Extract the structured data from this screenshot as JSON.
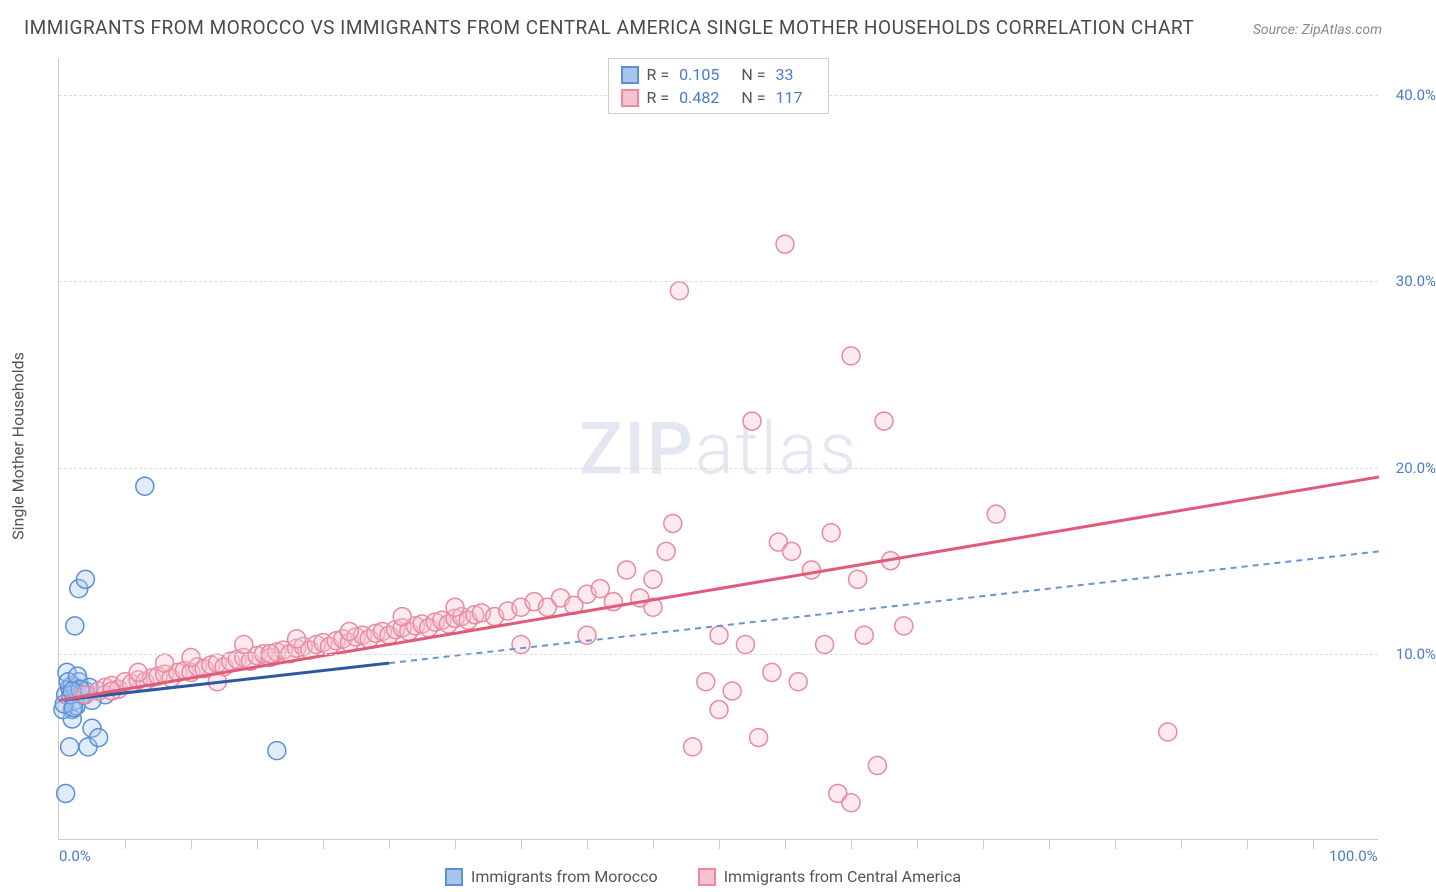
{
  "title": "IMMIGRANTS FROM MOROCCO VS IMMIGRANTS FROM CENTRAL AMERICA SINGLE MOTHER HOUSEHOLDS CORRELATION CHART",
  "source": "Source: ZipAtlas.com",
  "y_axis_label": "Single Mother Households",
  "watermark_a": "ZIP",
  "watermark_b": "atlas",
  "chart": {
    "type": "scatter",
    "xlim": [
      0,
      100
    ],
    "ylim": [
      0,
      42
    ],
    "y_ticks": [
      10,
      20,
      30,
      40
    ],
    "y_tick_labels": [
      "10.0%",
      "20.0%",
      "30.0%",
      "40.0%"
    ],
    "x_ticks": [
      0,
      50,
      100
    ],
    "x_tick_labels": [
      "0.0%",
      "",
      "100.0%"
    ],
    "x_minor_ticks": [
      5,
      10,
      15,
      20,
      25,
      30,
      35,
      40,
      45,
      50,
      55,
      60,
      65,
      70,
      75,
      80,
      85,
      90,
      95
    ],
    "grid_color": "#dddddd",
    "background_color": "#ffffff",
    "marker_radius": 9,
    "marker_stroke_width": 1.5,
    "marker_fill_opacity": 0.35,
    "series": [
      {
        "name": "Immigrants from Morocco",
        "stroke_color": "#5b8fd6",
        "fill_color": "#a8c5ed",
        "line_color": "#2c5aa0",
        "line_dash": "none",
        "R": "0.105",
        "N": "33",
        "trend_start": [
          0,
          7.5
        ],
        "trend_end": [
          25,
          9.5
        ],
        "extrap_dash": "6,5",
        "extrap_color": "#6a93d4",
        "extrap_start": [
          25,
          9.5
        ],
        "extrap_end": [
          100,
          15.5
        ],
        "points": [
          [
            0.5,
            7.8
          ],
          [
            0.8,
            8.2
          ],
          [
            1.0,
            7.0
          ],
          [
            1.2,
            7.5
          ],
          [
            1.3,
            8.0
          ],
          [
            1.5,
            8.5
          ],
          [
            1.0,
            6.5
          ],
          [
            0.5,
            2.5
          ],
          [
            1.2,
            11.5
          ],
          [
            1.5,
            13.5
          ],
          [
            2.0,
            14.0
          ],
          [
            0.8,
            5.0
          ],
          [
            2.2,
            5.0
          ],
          [
            2.5,
            6.0
          ],
          [
            3.0,
            5.5
          ],
          [
            3.5,
            7.8
          ],
          [
            1.0,
            8.3
          ],
          [
            1.3,
            7.2
          ],
          [
            2.0,
            8.0
          ],
          [
            2.5,
            7.5
          ],
          [
            0.6,
            9.0
          ],
          [
            6.5,
            19.0
          ],
          [
            0.3,
            7.0
          ],
          [
            0.7,
            8.5
          ],
          [
            1.4,
            8.8
          ],
          [
            1.8,
            7.8
          ],
          [
            2.3,
            8.2
          ],
          [
            0.4,
            7.3
          ],
          [
            0.9,
            7.8
          ],
          [
            1.1,
            7.1
          ],
          [
            1.6,
            8.1
          ],
          [
            16.5,
            4.8
          ],
          [
            1.0,
            8.0
          ]
        ]
      },
      {
        "name": "Immigrants from Central America",
        "stroke_color": "#e88ba0",
        "fill_color": "#f5c2ce",
        "line_color": "#e05a7a",
        "line_dash": "none",
        "R": "0.482",
        "N": "117",
        "trend_start": [
          0,
          7.5
        ],
        "trend_end": [
          100,
          19.5
        ],
        "points": [
          [
            2,
            7.8
          ],
          [
            3,
            8.0
          ],
          [
            3.5,
            8.2
          ],
          [
            4,
            8.3
          ],
          [
            4.5,
            8.1
          ],
          [
            5,
            8.5
          ],
          [
            5.5,
            8.4
          ],
          [
            6,
            8.6
          ],
          [
            6.5,
            8.5
          ],
          [
            7,
            8.7
          ],
          [
            7.5,
            8.8
          ],
          [
            8,
            8.9
          ],
          [
            8.5,
            8.7
          ],
          [
            9,
            9.0
          ],
          [
            9.5,
            9.1
          ],
          [
            10,
            9.0
          ],
          [
            10.5,
            9.3
          ],
          [
            11,
            9.2
          ],
          [
            11.5,
            9.4
          ],
          [
            12,
            9.5
          ],
          [
            12.5,
            9.3
          ],
          [
            13,
            9.6
          ],
          [
            13.5,
            9.7
          ],
          [
            14,
            9.8
          ],
          [
            14.5,
            9.6
          ],
          [
            15,
            9.9
          ],
          [
            15.5,
            10.0
          ],
          [
            16,
            9.8
          ],
          [
            16.5,
            10.1
          ],
          [
            17,
            10.2
          ],
          [
            17.5,
            10.0
          ],
          [
            18,
            10.3
          ],
          [
            18.5,
            10.4
          ],
          [
            19,
            10.2
          ],
          [
            19.5,
            10.5
          ],
          [
            20,
            10.6
          ],
          [
            20.5,
            10.4
          ],
          [
            21,
            10.7
          ],
          [
            21.5,
            10.8
          ],
          [
            22,
            10.6
          ],
          [
            22.5,
            10.9
          ],
          [
            23,
            11.0
          ],
          [
            23.5,
            10.8
          ],
          [
            24,
            11.1
          ],
          [
            24.5,
            11.2
          ],
          [
            25,
            11.0
          ],
          [
            25.5,
            11.3
          ],
          [
            26,
            11.4
          ],
          [
            26.5,
            11.2
          ],
          [
            27,
            11.5
          ],
          [
            27.5,
            11.6
          ],
          [
            28,
            11.4
          ],
          [
            28.5,
            11.7
          ],
          [
            29,
            11.8
          ],
          [
            29.5,
            11.6
          ],
          [
            30,
            11.9
          ],
          [
            30.5,
            12.0
          ],
          [
            31,
            11.8
          ],
          [
            31.5,
            12.1
          ],
          [
            32,
            12.2
          ],
          [
            33,
            12.0
          ],
          [
            34,
            12.3
          ],
          [
            35,
            12.5
          ],
          [
            36,
            12.8
          ],
          [
            37,
            12.5
          ],
          [
            38,
            13.0
          ],
          [
            39,
            12.6
          ],
          [
            40,
            13.2
          ],
          [
            41,
            13.5
          ],
          [
            42,
            12.8
          ],
          [
            43,
            14.5
          ],
          [
            44,
            13.0
          ],
          [
            45,
            12.5
          ],
          [
            46,
            15.5
          ],
          [
            46.5,
            17.0
          ],
          [
            47,
            29.5
          ],
          [
            48,
            5.0
          ],
          [
            49,
            8.5
          ],
          [
            50,
            11.0
          ],
          [
            51,
            8.0
          ],
          [
            52,
            10.5
          ],
          [
            52.5,
            22.5
          ],
          [
            53,
            5.5
          ],
          [
            54,
            9.0
          ],
          [
            54.5,
            16.0
          ],
          [
            55,
            32.0
          ],
          [
            55.5,
            15.5
          ],
          [
            56,
            8.5
          ],
          [
            57,
            14.5
          ],
          [
            58,
            10.5
          ],
          [
            58.5,
            16.5
          ],
          [
            59,
            2.5
          ],
          [
            60,
            26.0
          ],
          [
            60.5,
            14.0
          ],
          [
            61,
            11.0
          ],
          [
            62,
            4.0
          ],
          [
            62.5,
            22.5
          ],
          [
            63,
            15.0
          ],
          [
            64,
            11.5
          ],
          [
            71,
            17.5
          ],
          [
            4,
            8.0
          ],
          [
            6,
            9.0
          ],
          [
            8,
            9.5
          ],
          [
            10,
            9.8
          ],
          [
            12,
            8.5
          ],
          [
            14,
            10.5
          ],
          [
            16,
            10.0
          ],
          [
            18,
            10.8
          ],
          [
            22,
            11.2
          ],
          [
            26,
            12.0
          ],
          [
            30,
            12.5
          ],
          [
            35,
            10.5
          ],
          [
            40,
            11.0
          ],
          [
            45,
            14.0
          ],
          [
            50,
            7.0
          ],
          [
            84,
            5.8
          ],
          [
            60,
            2.0
          ]
        ]
      }
    ]
  },
  "legend": {
    "items": [
      {
        "label": "Immigrants from Morocco"
      },
      {
        "label": "Immigrants from Central America"
      }
    ]
  }
}
